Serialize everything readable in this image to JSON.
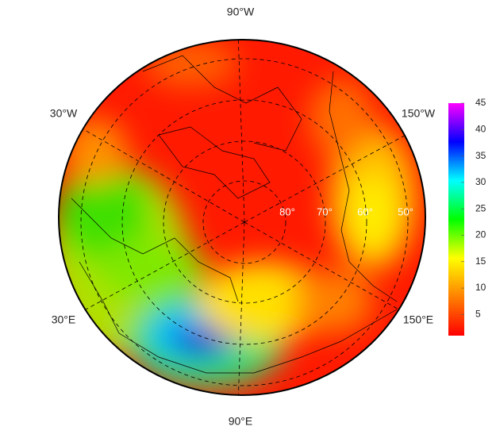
{
  "map": {
    "lon_labels": [
      "90°W",
      "30°W",
      "150°W",
      "30°E",
      "150°E",
      "90°E"
    ],
    "lat_labels": [
      "80°",
      "70°",
      "60°",
      "50°"
    ]
  },
  "colorbar": {
    "lim": [
      1,
      45
    ],
    "ticks": [
      5,
      10,
      15,
      20,
      25,
      30,
      35,
      40,
      45
    ],
    "colormap": [
      "#ff0000",
      "#ff8000",
      "#ffff00",
      "#00ff00",
      "#00ffff",
      "#0000ff",
      "#ff00ff"
    ]
  }
}
